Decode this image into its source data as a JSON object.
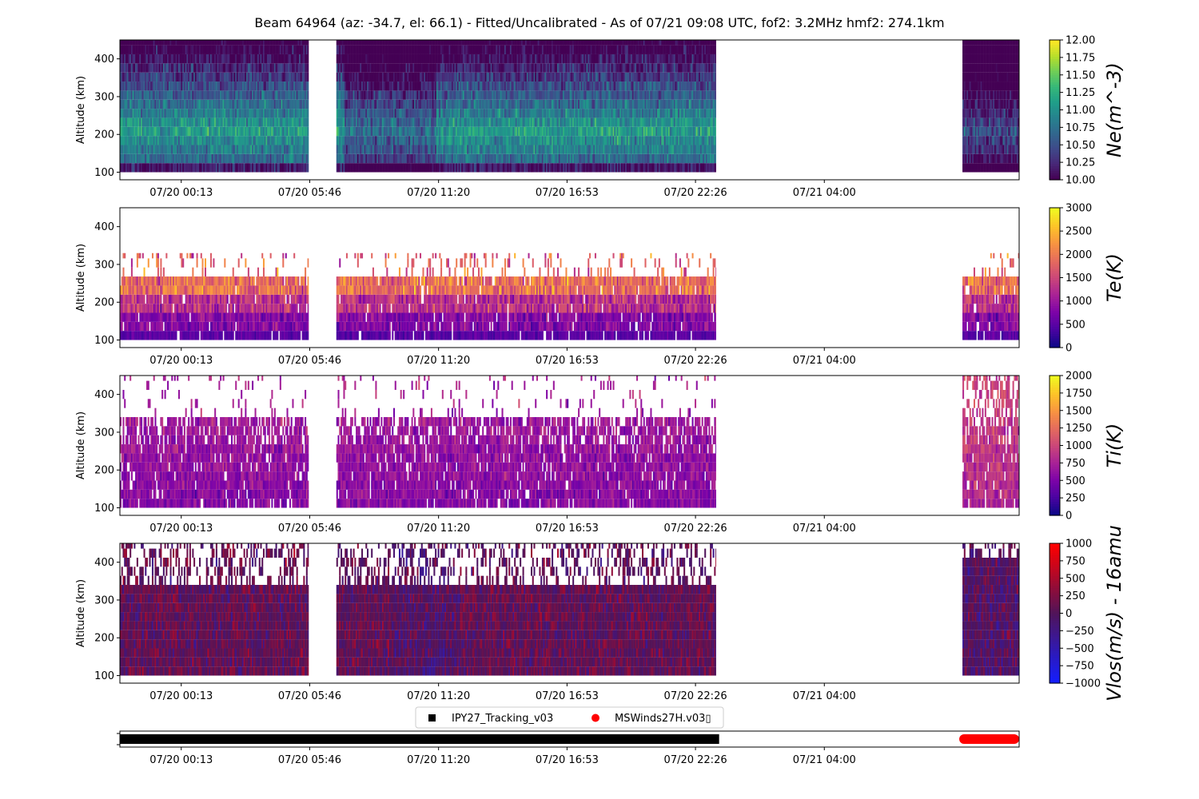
{
  "title": "Beam 64964 (az: -34.7, el: 66.1) - Fitted/Uncalibrated - As of 07/21 09:08 UTC, fof2: 3.2MHz  hmf2: 274.1km",
  "chart_data": {
    "type": "heatmap",
    "time_axis": {
      "range_hours": [
        -2.65,
        36.2
      ],
      "tick_hours": [
        0,
        5.55,
        11.117,
        16.667,
        22.217,
        27.783
      ],
      "tick_labels": [
        "07/20 00:13",
        "07/20 05:46",
        "07/20 11:20",
        "07/20 16:53",
        "07/20 22:26",
        "07/21 04:00"
      ]
    },
    "data_segments_hours": [
      [
        -2.65,
        5.5
      ],
      [
        6.7,
        23.1
      ],
      [
        33.75,
        36.2
      ]
    ],
    "panels": [
      {
        "id": "ne",
        "ylabel": "Altitude (km)",
        "ylim": [
          80,
          450
        ],
        "yticks": [
          100,
          200,
          300,
          400
        ],
        "alt_range": [
          100,
          450
        ],
        "colorbar_label": "Ne(m^-3)",
        "colormap": "viridis",
        "clim": [
          10.0,
          12.0
        ],
        "cbar_ticks": [
          10.0,
          10.25,
          10.5,
          10.75,
          11.0,
          11.25,
          11.5,
          11.75,
          12.0
        ],
        "cbar_tick_labels": [
          "10.00",
          "10.25",
          "10.50",
          "10.75",
          "11.00",
          "11.25",
          "11.50",
          "11.75",
          "12.00"
        ]
      },
      {
        "id": "te",
        "ylabel": "Altitude (km)",
        "ylim": [
          80,
          450
        ],
        "yticks": [
          100,
          200,
          300,
          400
        ],
        "alt_range": [
          100,
          330
        ],
        "colorbar_label": "Te(K)",
        "colormap": "plasma",
        "clim": [
          0,
          3000
        ],
        "cbar_ticks": [
          0,
          500,
          1000,
          1500,
          2000,
          2500,
          3000
        ],
        "cbar_tick_labels": [
          "0",
          "500",
          "1000",
          "1500",
          "2000",
          "2500",
          "3000"
        ]
      },
      {
        "id": "ti",
        "ylabel": "Altitude (km)",
        "ylim": [
          80,
          450
        ],
        "yticks": [
          100,
          200,
          300,
          400
        ],
        "alt_range": [
          100,
          450
        ],
        "colorbar_label": "Ti(K)",
        "colormap": "plasma",
        "clim": [
          0,
          2000
        ],
        "cbar_ticks": [
          0,
          250,
          500,
          750,
          1000,
          1250,
          1500,
          1750,
          2000
        ],
        "cbar_tick_labels": [
          "0",
          "250",
          "500",
          "750",
          "1000",
          "1250",
          "1500",
          "1750",
          "2000"
        ]
      },
      {
        "id": "vlos",
        "ylabel": "Altitude (km)",
        "ylim": [
          80,
          450
        ],
        "yticks": [
          100,
          200,
          300,
          400
        ],
        "alt_range": [
          100,
          450
        ],
        "colorbar_label": "Vlos(m/s) - 16amu",
        "colormap": "bwr",
        "clim": [
          -1000,
          1000
        ],
        "cbar_ticks": [
          -1000,
          -750,
          -500,
          -250,
          0,
          250,
          500,
          750,
          1000
        ],
        "cbar_tick_labels": [
          "−1000",
          "−750",
          "−500",
          "−250",
          "0",
          "250",
          "500",
          "750",
          "1000"
        ]
      }
    ],
    "mode_panel": {
      "series": [
        {
          "name": "IPY27_Tracking_v03",
          "color": "#000000",
          "marker": "square",
          "segments_hours": [
            [
              -2.65,
              23.1
            ]
          ]
        },
        {
          "name": "MSWinds27H.v03\u0000",
          "color": "#ff0000",
          "marker": "circle",
          "segments_hours": [
            [
              33.75,
              36.2
            ]
          ]
        }
      ]
    }
  }
}
